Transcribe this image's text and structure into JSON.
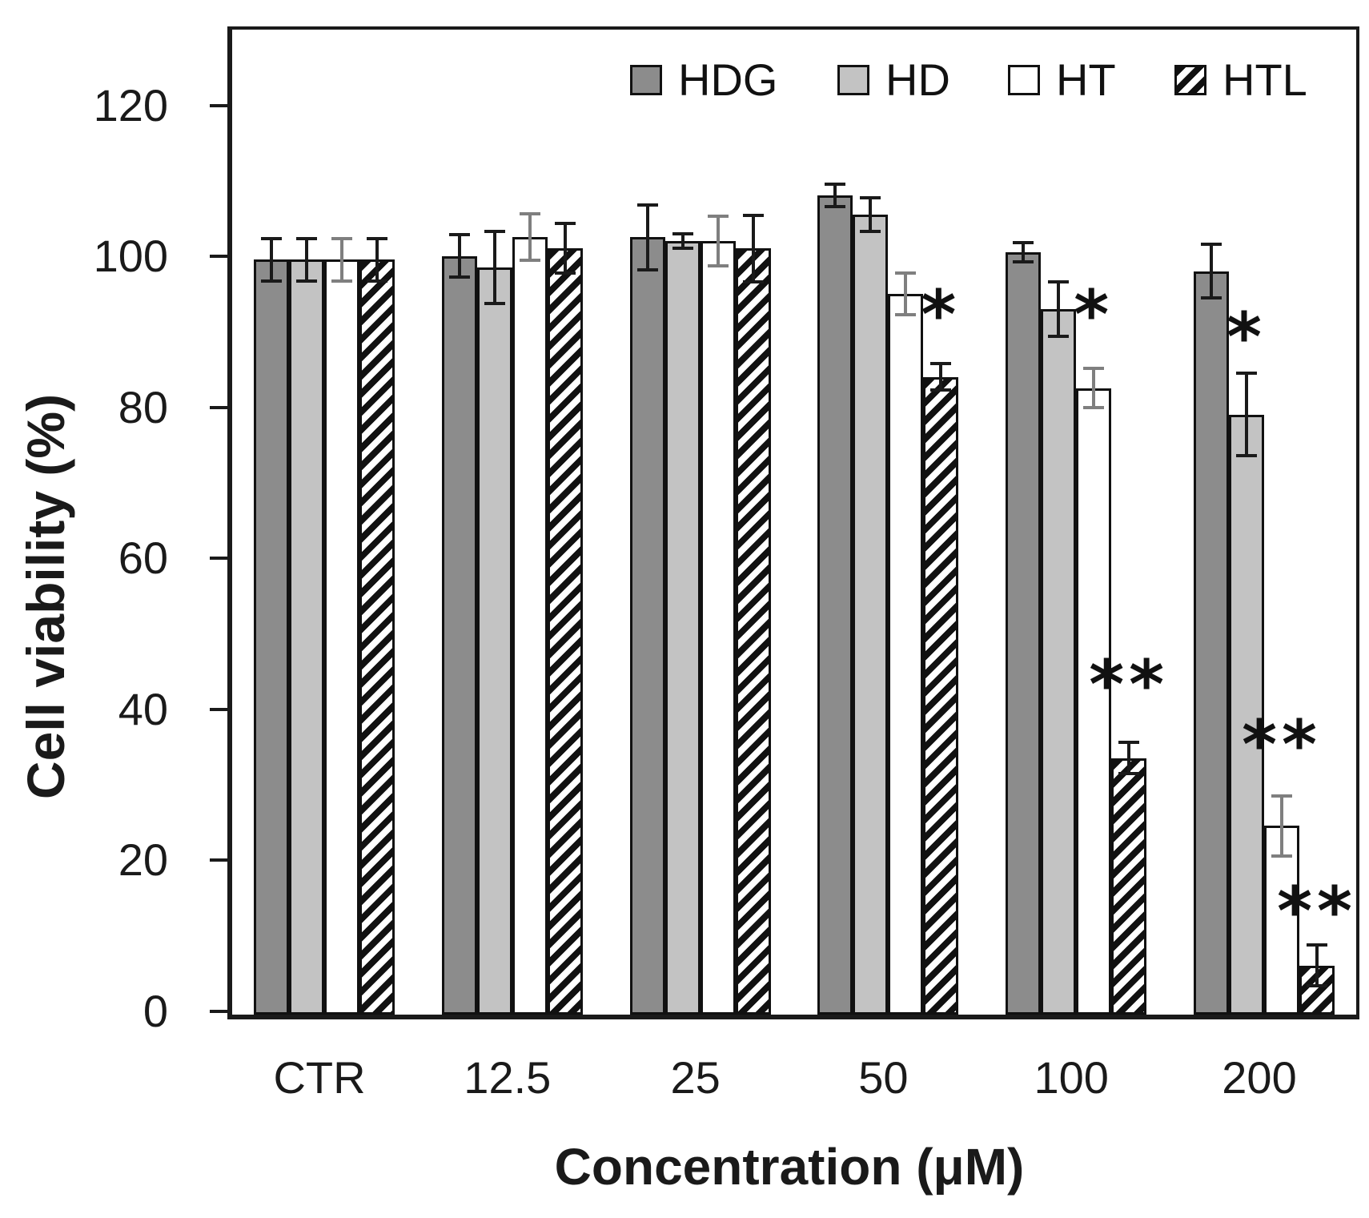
{
  "chart_data": {
    "type": "bar",
    "title": "",
    "xlabel": "Concentration (μM)",
    "ylabel": "Cell viability (%)",
    "categories": [
      "CTR",
      "12.5",
      "25",
      "50",
      "100",
      "200"
    ],
    "y_ticks": [
      0,
      20,
      40,
      60,
      80,
      100,
      120
    ],
    "ylim": [
      0,
      130.5
    ],
    "grid": false,
    "legend_position": "top-inside-row",
    "axis_color": "#1a1a1a",
    "series": [
      {
        "name": "HDG",
        "fill": "#8c8c8c",
        "pattern": "solid",
        "error_color": "#1a1a1a",
        "values": [
          100,
          100.5,
          103,
          108.5,
          101,
          98.5
        ],
        "errors": [
          3,
          3,
          4.5,
          1.7,
          1.5,
          3.8
        ]
      },
      {
        "name": "HD",
        "fill": "#c3c3c3",
        "pattern": "solid",
        "error_color": "#1a1a1a",
        "values": [
          100,
          99,
          102.5,
          106,
          93.5,
          79.5
        ],
        "errors": [
          3,
          5,
          1.2,
          2.4,
          3.8,
          5.7
        ]
      },
      {
        "name": "HT",
        "fill": "#ffffff",
        "pattern": "solid",
        "error_color": "#7f7f7f",
        "values": [
          100,
          103,
          102.5,
          95.5,
          83,
          25
        ],
        "errors": [
          3,
          3.3,
          3.5,
          3,
          2.8,
          4.2
        ]
      },
      {
        "name": "HTL",
        "fill": "#ffffff",
        "pattern": "diagonal-hatch",
        "hatch_colors": [
          "#111111",
          "#ffffff"
        ],
        "error_color": "#1a1a1a",
        "values": [
          100,
          101.5,
          101.5,
          84.5,
          34,
          6.5
        ],
        "errors": [
          3,
          3.5,
          4.6,
          2,
          2.3,
          2.9
        ]
      }
    ],
    "annotations": [
      {
        "category": "50",
        "series": "HTL",
        "text": "*",
        "y": 94
      },
      {
        "category": "100",
        "series": "HT",
        "text": "*",
        "y": 94
      },
      {
        "category": "100",
        "series": "HTL",
        "text": "**",
        "y": 45
      },
      {
        "category": "200",
        "series": "HD",
        "text": "*",
        "y": 91
      },
      {
        "category": "200",
        "series": "HT",
        "text": "**",
        "y": 37
      },
      {
        "category": "200",
        "series": "HTL",
        "text": "**",
        "y": 15
      }
    ]
  }
}
